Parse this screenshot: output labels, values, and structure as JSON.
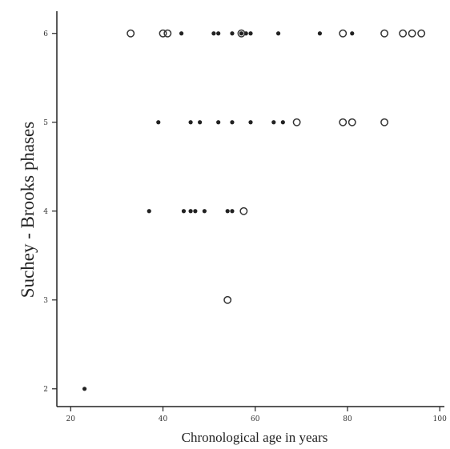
{
  "chart_data": {
    "type": "scatter",
    "title": "",
    "xlabel": "Chronological age in years",
    "ylabel": "Suchey - Brooks phases",
    "xlim": [
      17,
      101
    ],
    "ylim": [
      1.8,
      6.25
    ],
    "xticks": [
      20,
      40,
      60,
      80,
      100
    ],
    "xtick_labels": [
      "20",
      "40",
      "60",
      "80",
      "100"
    ],
    "yticks": [
      2,
      3,
      4,
      5,
      6
    ],
    "ytick_labels": [
      "2",
      "3",
      "4",
      "5",
      "6"
    ],
    "grid": false,
    "legend": "none",
    "series": [
      {
        "marker": "filled",
        "points": [
          [
            23,
            2
          ],
          [
            37,
            4
          ],
          [
            44.5,
            4
          ],
          [
            46,
            4
          ],
          [
            47,
            4
          ],
          [
            49,
            4
          ],
          [
            54,
            4
          ],
          [
            55,
            4
          ],
          [
            39,
            5
          ],
          [
            46,
            5
          ],
          [
            48,
            5
          ],
          [
            52,
            5
          ],
          [
            55,
            5
          ],
          [
            59,
            5
          ],
          [
            64,
            5
          ],
          [
            66,
            5
          ],
          [
            44,
            6
          ],
          [
            51,
            6
          ],
          [
            52,
            6
          ],
          [
            55,
            6
          ],
          [
            57,
            6
          ],
          [
            58,
            6
          ],
          [
            59,
            6
          ],
          [
            65,
            6
          ],
          [
            74,
            6
          ],
          [
            81,
            6
          ]
        ]
      },
      {
        "marker": "open",
        "points": [
          [
            54,
            3
          ],
          [
            57.5,
            4
          ],
          [
            69,
            5
          ],
          [
            79,
            5
          ],
          [
            81,
            5
          ],
          [
            88,
            5
          ],
          [
            33,
            6
          ],
          [
            40,
            6
          ],
          [
            41,
            6
          ],
          [
            57,
            6
          ],
          [
            79,
            6
          ],
          [
            88,
            6
          ],
          [
            92,
            6
          ],
          [
            94,
            6
          ],
          [
            96,
            6
          ]
        ]
      }
    ]
  }
}
